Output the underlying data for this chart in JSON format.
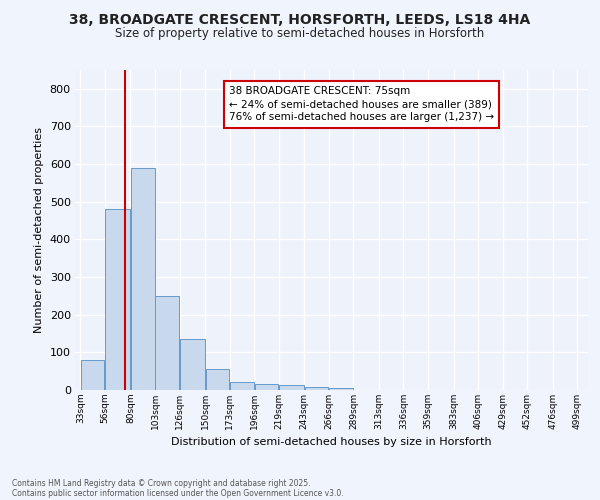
{
  "title1": "38, BROADGATE CRESCENT, HORSFORTH, LEEDS, LS18 4HA",
  "title2": "Size of property relative to semi-detached houses in Horsforth",
  "xlabel": "Distribution of semi-detached houses by size in Horsforth",
  "ylabel": "Number of semi-detached properties",
  "footer1": "Contains HM Land Registry data © Crown copyright and database right 2025.",
  "footer2": "Contains public sector information licensed under the Open Government Licence v3.0.",
  "annotation_title": "38 BROADGATE CRESCENT: 75sqm",
  "annotation_line2": "← 24% of semi-detached houses are smaller (389)",
  "annotation_line3": "76% of semi-detached houses are larger (1,237) →",
  "property_size": 75,
  "bar_edges": [
    33,
    56,
    80,
    103,
    126,
    150,
    173,
    196,
    219,
    243,
    266,
    289,
    313,
    336,
    359,
    383,
    406,
    429,
    452,
    476,
    499
  ],
  "bar_heights": [
    80,
    480,
    590,
    250,
    135,
    55,
    20,
    15,
    13,
    7,
    5,
    0,
    0,
    0,
    0,
    0,
    0,
    0,
    0,
    0
  ],
  "bar_color": "#c9d9ed",
  "bar_edge_color": "#6699cc",
  "vline_color": "#cc0000",
  "vline_x": 75,
  "ylim": [
    0,
    850
  ],
  "yticks": [
    0,
    100,
    200,
    300,
    400,
    500,
    600,
    700,
    800
  ],
  "bg_color": "#eef3fb",
  "grid_color": "#ffffff",
  "fig_bg_color": "#f0f4fc",
  "annotation_box_color": "#ffffff",
  "annotation_box_edge": "#cc0000"
}
